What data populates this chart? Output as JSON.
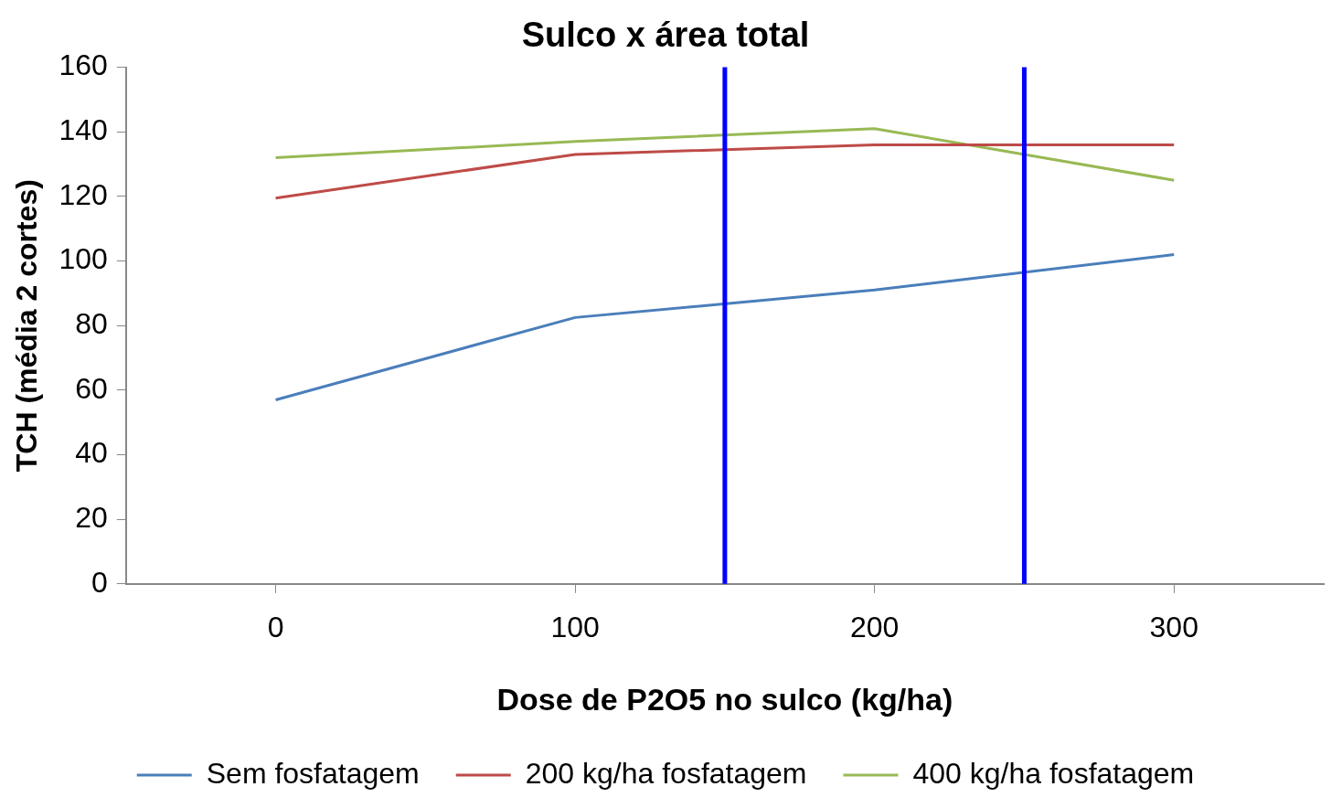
{
  "chart_data": {
    "type": "line",
    "title": "Sulco x área total",
    "xlabel": "Dose de P2O5 no sulco (kg/ha)",
    "ylabel": "TCH (média 2 cortes)",
    "x": [
      0,
      100,
      200,
      300
    ],
    "xlim": [
      -50,
      350
    ],
    "xticks": [
      0,
      100,
      200,
      300
    ],
    "ylim": [
      0,
      160
    ],
    "yticks": [
      0,
      20,
      40,
      60,
      80,
      100,
      120,
      140,
      160
    ],
    "series": [
      {
        "name": "Sem fosfatagem",
        "color": "#4a7ebb",
        "values": [
          57,
          82.5,
          91,
          102
        ]
      },
      {
        "name": "200 kg/ha fosfatagem",
        "color": "#be4b48",
        "values": [
          119.5,
          133,
          136,
          136
        ]
      },
      {
        "name": "400 kg/ha fosfatagem",
        "color": "#98b954",
        "values": [
          132,
          137,
          141,
          125
        ]
      }
    ],
    "ref_lines": [
      {
        "axis": "x",
        "value": 150,
        "color": "#0000ff"
      },
      {
        "axis": "x",
        "value": 250,
        "color": "#0000ff"
      }
    ],
    "grid": false,
    "legend": "bottom",
    "marker": "none",
    "line_style": "solid"
  }
}
